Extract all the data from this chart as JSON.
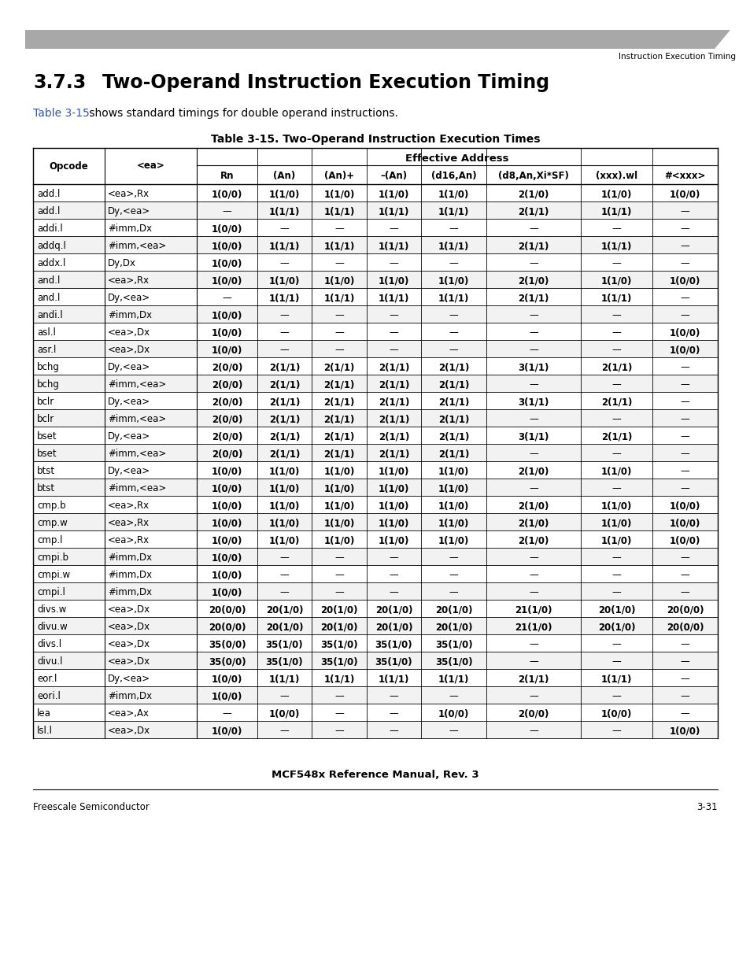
{
  "page_header_right": "Instruction Execution Timing",
  "section_title_num": "3.7.3",
  "section_title_text": "Two-Operand Instruction Execution Timing",
  "intro_link": "Table 3-15",
  "intro_rest": " shows standard timings for double operand instructions.",
  "table_title": "Table 3-15. Two-Operand Instruction Execution Times",
  "col_labels": [
    "Opcode",
    "<ea>",
    "Rn",
    "(An)",
    "(An)+",
    "–(An)",
    "(d16,An)",
    "(d8,An,Xi*SF)",
    "(xxx).wl",
    "#<xxx>"
  ],
  "ea_header": "Effective Address",
  "rows": [
    [
      "add.l",
      "<ea>,Rx",
      "1(0/0)",
      "1(1/0)",
      "1(1/0)",
      "1(1/0)",
      "1(1/0)",
      "2(1/0)",
      "1(1/0)",
      "1(0/0)"
    ],
    [
      "add.l",
      "Dy,<ea>",
      "—",
      "1(1/1)",
      "1(1/1)",
      "1(1/1)",
      "1(1/1)",
      "2(1/1)",
      "1(1/1)",
      "—"
    ],
    [
      "addi.l",
      "#imm,Dx",
      "1(0/0)",
      "—",
      "—",
      "—",
      "—",
      "—",
      "—",
      "—"
    ],
    [
      "addq.l",
      "#imm,<ea>",
      "1(0/0)",
      "1(1/1)",
      "1(1/1)",
      "1(1/1)",
      "1(1/1)",
      "2(1/1)",
      "1(1/1)",
      "—"
    ],
    [
      "addx.l",
      "Dy,Dx",
      "1(0/0)",
      "—",
      "—",
      "—",
      "—",
      "—",
      "—",
      "—"
    ],
    [
      "and.l",
      "<ea>,Rx",
      "1(0/0)",
      "1(1/0)",
      "1(1/0)",
      "1(1/0)",
      "1(1/0)",
      "2(1/0)",
      "1(1/0)",
      "1(0/0)"
    ],
    [
      "and.l",
      "Dy,<ea>",
      "—",
      "1(1/1)",
      "1(1/1)",
      "1(1/1)",
      "1(1/1)",
      "2(1/1)",
      "1(1/1)",
      "—"
    ],
    [
      "andi.l",
      "#imm,Dx",
      "1(0/0)",
      "—",
      "—",
      "—",
      "—",
      "—",
      "—",
      "—"
    ],
    [
      "asl.l",
      "<ea>,Dx",
      "1(0/0)",
      "—",
      "—",
      "—",
      "—",
      "—",
      "—",
      "1(0/0)"
    ],
    [
      "asr.l",
      "<ea>,Dx",
      "1(0/0)",
      "—",
      "—",
      "—",
      "—",
      "—",
      "—",
      "1(0/0)"
    ],
    [
      "bchg",
      "Dy,<ea>",
      "2(0/0)",
      "2(1/1)",
      "2(1/1)",
      "2(1/1)",
      "2(1/1)",
      "3(1/1)",
      "2(1/1)",
      "—"
    ],
    [
      "bchg",
      "#imm,<ea>",
      "2(0/0)",
      "2(1/1)",
      "2(1/1)",
      "2(1/1)",
      "2(1/1)",
      "—",
      "—",
      "—"
    ],
    [
      "bclr",
      "Dy,<ea>",
      "2(0/0)",
      "2(1/1)",
      "2(1/1)",
      "2(1/1)",
      "2(1/1)",
      "3(1/1)",
      "2(1/1)",
      "—"
    ],
    [
      "bclr",
      "#imm,<ea>",
      "2(0/0)",
      "2(1/1)",
      "2(1/1)",
      "2(1/1)",
      "2(1/1)",
      "—",
      "—",
      "—"
    ],
    [
      "bset",
      "Dy,<ea>",
      "2(0/0)",
      "2(1/1)",
      "2(1/1)",
      "2(1/1)",
      "2(1/1)",
      "3(1/1)",
      "2(1/1)",
      "—"
    ],
    [
      "bset",
      "#imm,<ea>",
      "2(0/0)",
      "2(1/1)",
      "2(1/1)",
      "2(1/1)",
      "2(1/1)",
      "—",
      "—",
      "—"
    ],
    [
      "btst",
      "Dy,<ea>",
      "1(0/0)",
      "1(1/0)",
      "1(1/0)",
      "1(1/0)",
      "1(1/0)",
      "2(1/0)",
      "1(1/0)",
      "—"
    ],
    [
      "btst",
      "#imm,<ea>",
      "1(0/0)",
      "1(1/0)",
      "1(1/0)",
      "1(1/0)",
      "1(1/0)",
      "—",
      "—",
      "—"
    ],
    [
      "cmp.b",
      "<ea>,Rx",
      "1(0/0)",
      "1(1/0)",
      "1(1/0)",
      "1(1/0)",
      "1(1/0)",
      "2(1/0)",
      "1(1/0)",
      "1(0/0)"
    ],
    [
      "cmp.w",
      "<ea>,Rx",
      "1(0/0)",
      "1(1/0)",
      "1(1/0)",
      "1(1/0)",
      "1(1/0)",
      "2(1/0)",
      "1(1/0)",
      "1(0/0)"
    ],
    [
      "cmp.l",
      "<ea>,Rx",
      "1(0/0)",
      "1(1/0)",
      "1(1/0)",
      "1(1/0)",
      "1(1/0)",
      "2(1/0)",
      "1(1/0)",
      "1(0/0)"
    ],
    [
      "cmpi.b",
      "#imm,Dx",
      "1(0/0)",
      "—",
      "—",
      "—",
      "—",
      "—",
      "—",
      "—"
    ],
    [
      "cmpi.w",
      "#imm,Dx",
      "1(0/0)",
      "—",
      "—",
      "—",
      "—",
      "—",
      "—",
      "—"
    ],
    [
      "cmpi.l",
      "#imm,Dx",
      "1(0/0)",
      "—",
      "—",
      "—",
      "—",
      "—",
      "—",
      "—"
    ],
    [
      "divs.w",
      "<ea>,Dx",
      "20(0/0)",
      "20(1/0)",
      "20(1/0)",
      "20(1/0)",
      "20(1/0)",
      "21(1/0)",
      "20(1/0)",
      "20(0/0)"
    ],
    [
      "divu.w",
      "<ea>,Dx",
      "20(0/0)",
      "20(1/0)",
      "20(1/0)",
      "20(1/0)",
      "20(1/0)",
      "21(1/0)",
      "20(1/0)",
      "20(0/0)"
    ],
    [
      "divs.l",
      "<ea>,Dx",
      "35(0/0)",
      "35(1/0)",
      "35(1/0)",
      "35(1/0)",
      "35(1/0)",
      "—",
      "—",
      "—"
    ],
    [
      "divu.l",
      "<ea>,Dx",
      "35(0/0)",
      "35(1/0)",
      "35(1/0)",
      "35(1/0)",
      "35(1/0)",
      "—",
      "—",
      "—"
    ],
    [
      "eor.l",
      "Dy,<ea>",
      "1(0/0)",
      "1(1/1)",
      "1(1/1)",
      "1(1/1)",
      "1(1/1)",
      "2(1/1)",
      "1(1/1)",
      "—"
    ],
    [
      "eori.l",
      "#imm,Dx",
      "1(0/0)",
      "—",
      "—",
      "—",
      "—",
      "—",
      "—",
      "—"
    ],
    [
      "lea",
      "<ea>,Ax",
      "—",
      "1(0/0)",
      "—",
      "—",
      "1(0/0)",
      "2(0/0)",
      "1(0/0)",
      "—"
    ],
    [
      "lsl.l",
      "<ea>,Dx",
      "1(0/0)",
      "—",
      "—",
      "—",
      "—",
      "—",
      "—",
      "1(0/0)"
    ]
  ],
  "footer_center": "MCF548x Reference Manual, Rev. 3",
  "footer_left": "Freescale Semiconductor",
  "footer_right": "3-31",
  "bg_color": "#ffffff",
  "link_color": "#3355aa"
}
